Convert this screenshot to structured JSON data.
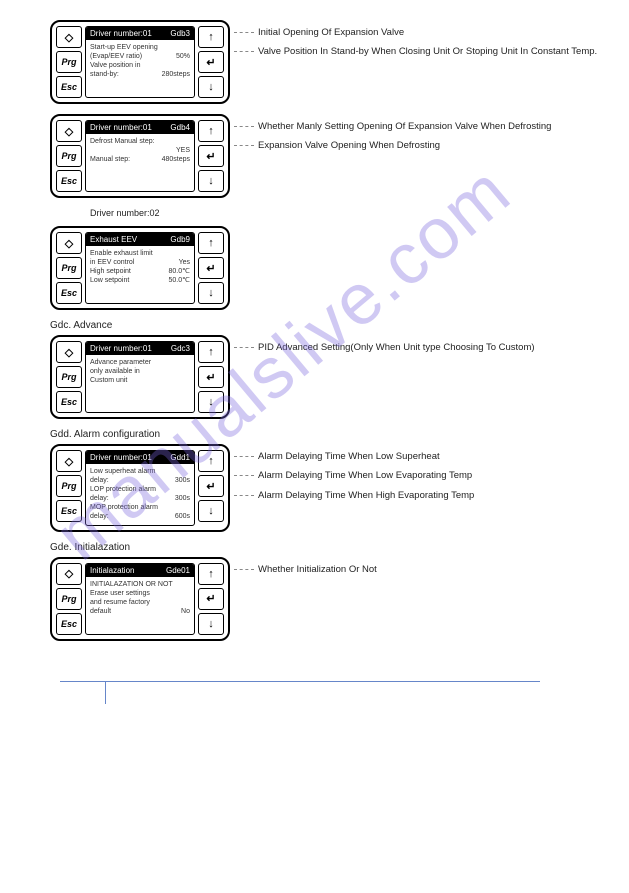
{
  "watermark": "manualslive.com",
  "buttons": {
    "bell": "◇",
    "prg": "Prg",
    "esc": "Esc",
    "up": "↑",
    "enter": "↵",
    "down": "↓"
  },
  "panels": [
    {
      "title_left": "Driver number:01",
      "title_right": "Gdb3",
      "lines": [
        {
          "l": "Start-up EEV opening",
          "r": ""
        },
        {
          "l": "(Evap/EEV ratio)",
          "r": "50%"
        },
        {
          "l": "Valve position in",
          "r": ""
        },
        {
          "l": "stand-by:",
          "r": "280steps"
        }
      ],
      "annotations": [
        "Initial Opening Of Expansion Valve",
        "Valve Position In Stand-by When Closing Unit Or Stoping Unit In Constant Temp."
      ]
    },
    {
      "title_left": "Driver number:01",
      "title_right": "Gdb4",
      "lines": [
        {
          "l": "Defrost Manual step:",
          "r": ""
        },
        {
          "l": "",
          "r": "YES"
        },
        {
          "l": "Manual step:",
          "r": "480steps"
        }
      ],
      "annotations": [
        "Whether Manly Setting Opening Of Expansion Valve When Defrosting",
        "Expansion Valve Opening When Defrosting"
      ],
      "caption_after": "Driver number:02"
    },
    {
      "title_left": "Exhaust EEV",
      "title_right": "Gdb9",
      "lines": [
        {
          "l": "Enable exhaust limit",
          "r": ""
        },
        {
          "l": "in EEV control",
          "r": "Yes"
        },
        {
          "l": "High setpoint",
          "r": "80.0℃"
        },
        {
          "l": "Low setpoint",
          "r": "50.0℃"
        }
      ],
      "annotations": [],
      "section_after": "Gdc. Advance"
    },
    {
      "title_left": "Driver number:01",
      "title_right": "Gdc3",
      "lines": [
        {
          "l": "Advance parameter",
          "r": ""
        },
        {
          "l": "only available in",
          "r": ""
        },
        {
          "l": "Custom unit",
          "r": ""
        }
      ],
      "annotations": [
        "PID Advanced Setting(Only When Unit type Choosing To Custom)"
      ],
      "section_after": "Gdd. Alarm configuration"
    },
    {
      "title_left": "Driver number:01",
      "title_right": "Gdd1",
      "lines": [
        {
          "l": "Low superheat alarm",
          "r": ""
        },
        {
          "l": "delay:",
          "r": "300s"
        },
        {
          "l": "LOP protection alarm",
          "r": ""
        },
        {
          "l": "delay:",
          "r": "300s"
        },
        {
          "l": "MOP protection alarm",
          "r": ""
        },
        {
          "l": "delay:",
          "r": "600s"
        }
      ],
      "annotations": [
        "Alarm Delaying Time When Low Superheat",
        "Alarm Delaying Time When Low Evaporating Temp",
        "Alarm Delaying Time When High Evaporating Temp"
      ],
      "section_after": "Gde. Initialazation"
    },
    {
      "title_left": "Initialazation",
      "title_right": "Gde01",
      "lines": [
        {
          "l": "INITIALAZATION OR NOT",
          "r": ""
        },
        {
          "l": "Erase user settings",
          "r": ""
        },
        {
          "l": "and resume factory",
          "r": ""
        },
        {
          "l": "default",
          "r": "No"
        }
      ],
      "annotations": [
        "Whether Initialization Or Not"
      ]
    }
  ]
}
